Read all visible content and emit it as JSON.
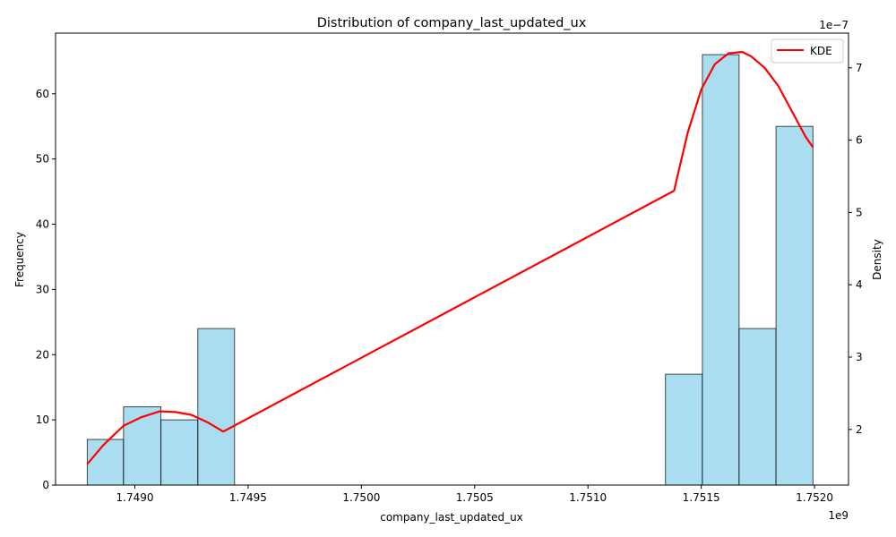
{
  "chart_data": {
    "type": "bar",
    "title": "Distribution of company_last_updated_ux",
    "xlabel": "company_last_updated_ux",
    "ylabel": "Frequency",
    "y2label": "Density",
    "x_offset_label": "1e9",
    "y2_offset_label": "1e−7",
    "xlim": [
      1748650000,
      1752150000
    ],
    "ylim": [
      0,
      69.3
    ],
    "y2lim": [
      1.23e-07,
      7.48e-07
    ],
    "x_ticks": [
      1.749,
      1.7495,
      1.75,
      1.7505,
      1.751,
      1.7515,
      1.752
    ],
    "x_tick_labels": [
      "1.7490",
      "1.7495",
      "1.7500",
      "1.7505",
      "1.7510",
      "1.7515",
      "1.7520"
    ],
    "y_ticks": [
      0,
      10,
      20,
      30,
      40,
      50,
      60
    ],
    "y_tick_labels": [
      "0",
      "10",
      "20",
      "30",
      "40",
      "50",
      "60"
    ],
    "y2_ticks": [
      2e-07,
      3e-07,
      4e-07,
      5e-07,
      6e-07,
      7e-07
    ],
    "y2_tick_labels": [
      "2",
      "3",
      "4",
      "5",
      "6",
      "7"
    ],
    "histogram": {
      "bin_edges": [
        1748880000,
        1749380000,
        1749880000,
        1750380000,
        1750880000,
        1751380000,
        1751880000
      ],
      "bin_edges_full": [
        1748880000,
        1749130000,
        1749380000,
        1749630000,
        1749880000,
        1750130000,
        1750380000,
        1750630000,
        1750880000,
        1751130000,
        1751380000,
        1751630000,
        1751880000
      ],
      "bins": [
        {
          "x0": 1748790000,
          "x1": 1748950000,
          "count": 7
        },
        {
          "x0": 1748950000,
          "x1": 1749115000,
          "count": 12
        },
        {
          "x0": 1749115000,
          "x1": 1749278000,
          "count": 10
        },
        {
          "x0": 1749278000,
          "x1": 1749440000,
          "count": 24
        },
        {
          "x0": 1751342000,
          "x1": 1751505000,
          "count": 17
        },
        {
          "x0": 1751505000,
          "x1": 1751667000,
          "count": 66
        },
        {
          "x0": 1751667000,
          "x1": 1751830000,
          "count": 24
        },
        {
          "x0": 1751830000,
          "x1": 1751993000,
          "count": 55
        }
      ],
      "color": "#87CEEB",
      "edge_color": "#000000"
    },
    "series": [
      {
        "name": "KDE",
        "color": "#FF0000",
        "x": [
          1748790000,
          1748860000,
          1748950000,
          1749030000,
          1749110000,
          1749180000,
          1749250000,
          1749320000,
          1749390000,
          1751380000,
          1751440000,
          1751500000,
          1751560000,
          1751620000,
          1751680000,
          1751720000,
          1751780000,
          1751840000,
          1751900000,
          1751960000,
          1751993000
        ],
        "y": [
          1.52e-07,
          1.78e-07,
          2.05e-07,
          2.17e-07,
          2.25e-07,
          2.24e-07,
          2.2e-07,
          2.1e-07,
          1.97e-07,
          5.3e-07,
          6.1e-07,
          6.7e-07,
          7.05e-07,
          7.2e-07,
          7.22e-07,
          7.16e-07,
          7e-07,
          6.75e-07,
          6.4e-07,
          6.05e-07,
          5.9e-07
        ]
      }
    ],
    "legend": {
      "placement": "top-right",
      "entries": [
        "KDE"
      ]
    },
    "grid": false
  }
}
